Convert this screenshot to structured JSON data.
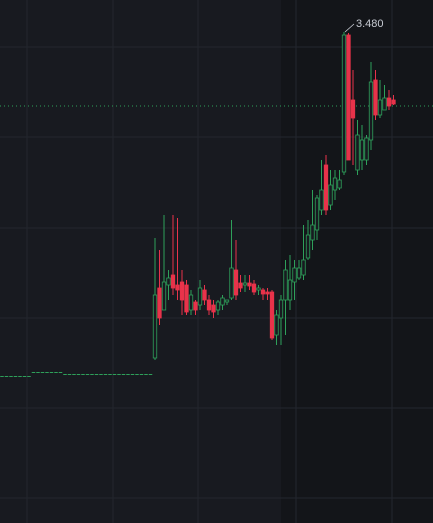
{
  "chart_data": {
    "type": "candlestick",
    "max_label": "3.480",
    "up_color": "#2ea05a",
    "down_color": "#e8334a",
    "price_line": 3.184,
    "price_line_color": "#2ea05a",
    "ylim": [
      1.516,
      3.608
    ],
    "open": [
      2.104,
      2.104,
      2.104,
      2.104,
      2.104,
      2.104,
      2.104,
      2.12,
      2.12,
      2.12,
      2.12,
      2.12,
      2.12,
      2.12,
      2.112,
      2.112,
      2.112,
      2.112,
      2.112,
      2.112,
      2.112,
      2.112,
      2.112,
      2.112,
      2.112,
      2.112,
      2.112,
      2.112,
      2.112,
      2.112,
      2.112,
      2.112,
      2.112,
      2.112,
      2.176,
      2.456,
      2.368,
      2.468,
      2.508,
      2.468,
      2.48,
      2.468,
      2.368,
      2.4,
      2.388,
      2.448,
      2.408,
      2.388,
      2.368,
      2.388,
      2.4,
      2.416,
      2.528,
      2.476,
      2.468,
      2.476,
      2.472,
      2.448,
      2.448,
      2.44,
      2.44,
      2.268,
      2.336,
      2.408,
      2.408,
      2.48,
      2.496,
      2.508,
      2.576,
      2.648,
      2.688,
      2.768,
      2.948,
      2.788,
      2.848,
      2.856,
      2.92,
      3.468,
      3.208,
      2.928,
      2.968,
      2.968,
      3.048,
      3.288,
      3.148,
      3.168,
      3.216,
      3.208
    ],
    "high": [
      2.104,
      2.104,
      2.104,
      2.104,
      2.104,
      2.104,
      2.104,
      2.12,
      2.12,
      2.12,
      2.12,
      2.12,
      2.12,
      2.12,
      2.112,
      2.112,
      2.112,
      2.112,
      2.112,
      2.112,
      2.112,
      2.112,
      2.112,
      2.112,
      2.112,
      2.112,
      2.112,
      2.112,
      2.112,
      2.112,
      2.112,
      2.112,
      2.112,
      2.112,
      2.656,
      2.608,
      2.748,
      2.528,
      2.748,
      2.736,
      2.528,
      2.488,
      2.448,
      2.408,
      2.488,
      2.468,
      2.428,
      2.408,
      2.408,
      2.428,
      2.408,
      2.728,
      2.648,
      2.508,
      2.508,
      2.508,
      2.488,
      2.468,
      2.456,
      2.456,
      2.448,
      2.368,
      2.428,
      2.568,
      2.588,
      2.568,
      2.568,
      2.708,
      2.728,
      2.848,
      2.828,
      2.968,
      2.988,
      2.928,
      2.928,
      2.928,
      3.48,
      3.476,
      3.328,
      3.128,
      3.108,
      3.068,
      3.36,
      3.328,
      3.288,
      3.268,
      3.248,
      3.228
    ],
    "low": [
      2.104,
      2.104,
      2.104,
      2.104,
      2.104,
      2.104,
      2.104,
      2.12,
      2.12,
      2.12,
      2.12,
      2.12,
      2.12,
      2.12,
      2.112,
      2.112,
      2.112,
      2.112,
      2.112,
      2.112,
      2.112,
      2.112,
      2.112,
      2.112,
      2.112,
      2.112,
      2.112,
      2.112,
      2.112,
      2.112,
      2.112,
      2.112,
      2.112,
      2.112,
      2.168,
      2.308,
      2.368,
      2.408,
      2.428,
      2.408,
      2.348,
      2.348,
      2.348,
      2.348,
      2.368,
      2.388,
      2.348,
      2.336,
      2.348,
      2.368,
      2.388,
      2.408,
      2.408,
      2.44,
      2.44,
      2.448,
      2.428,
      2.428,
      2.408,
      2.408,
      2.248,
      2.228,
      2.228,
      2.268,
      2.368,
      2.408,
      2.488,
      2.488,
      2.568,
      2.608,
      2.648,
      2.748,
      2.748,
      2.768,
      2.808,
      2.848,
      2.908,
      2.968,
      2.948,
      2.908,
      2.928,
      2.948,
      3.008,
      3.128,
      3.136,
      3.168,
      3.168,
      3.188
    ],
    "close": [
      2.104,
      2.104,
      2.104,
      2.104,
      2.104,
      2.104,
      2.104,
      2.12,
      2.12,
      2.12,
      2.12,
      2.12,
      2.12,
      2.12,
      2.112,
      2.112,
      2.112,
      2.112,
      2.112,
      2.112,
      2.112,
      2.112,
      2.112,
      2.112,
      2.112,
      2.112,
      2.112,
      2.112,
      2.112,
      2.112,
      2.112,
      2.112,
      2.112,
      2.112,
      2.428,
      2.336,
      2.48,
      2.496,
      2.456,
      2.448,
      2.408,
      2.36,
      2.428,
      2.368,
      2.456,
      2.408,
      2.368,
      2.36,
      2.4,
      2.416,
      2.408,
      2.536,
      2.428,
      2.456,
      2.476,
      2.464,
      2.44,
      2.456,
      2.432,
      2.432,
      2.256,
      2.348,
      2.408,
      2.528,
      2.488,
      2.536,
      2.536,
      2.568,
      2.668,
      2.708,
      2.816,
      2.848,
      2.768,
      2.868,
      2.896,
      2.888,
      3.468,
      2.968,
      3.136,
      3.068,
      3.048,
      3.056,
      3.28,
      3.148,
      3.208,
      3.216,
      3.184,
      3.192
    ]
  }
}
